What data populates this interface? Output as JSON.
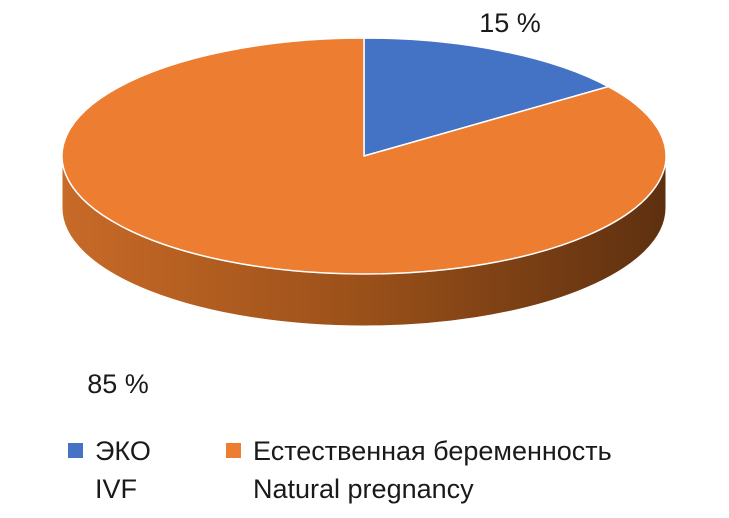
{
  "chart_data": {
    "type": "pie",
    "style": "3d",
    "title": "",
    "start_angle_deg": 0,
    "direction": "clockwise",
    "slices": [
      {
        "key": "ivf",
        "label_ru": "ЭКО",
        "label_en": "IVF",
        "value": 15,
        "value_label": "15 %",
        "color": "#4472c4",
        "side_color": "#2f4f8a"
      },
      {
        "key": "natural",
        "label_ru": "Естественная беременность",
        "label_en": "Natural pregnancy",
        "value": 85,
        "value_label": "85 %",
        "color": "#ed7d31",
        "side_color": "#8a4516"
      }
    ],
    "legend_position": "bottom"
  }
}
